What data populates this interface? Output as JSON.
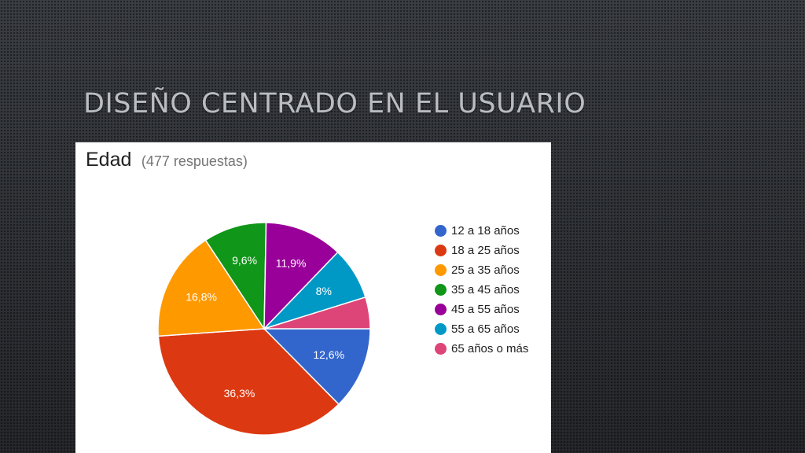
{
  "slide": {
    "title": "Diseño centrado en el usuario"
  },
  "card": {
    "title": "Edad",
    "responses": "(477 respuestas)"
  },
  "chart_data": {
    "type": "pie",
    "title": "Edad",
    "categories": [
      "12 a 18 años",
      "18 a 25 años",
      "25 a 35 años",
      "35 a 45 años",
      "45 a 55 años",
      "55 a 65 años",
      "65 años o más"
    ],
    "values": [
      12.6,
      36.3,
      16.8,
      9.6,
      11.9,
      8.0,
      4.8
    ],
    "labels": [
      "12,6%",
      "36,3%",
      "16,8%",
      "9,6%",
      "11,9%",
      "8%",
      ""
    ],
    "colors": [
      "#3366cc",
      "#dc3912",
      "#ff9900",
      "#109618",
      "#990099",
      "#0099c6",
      "#dd4477"
    ],
    "legend_position": "right"
  }
}
